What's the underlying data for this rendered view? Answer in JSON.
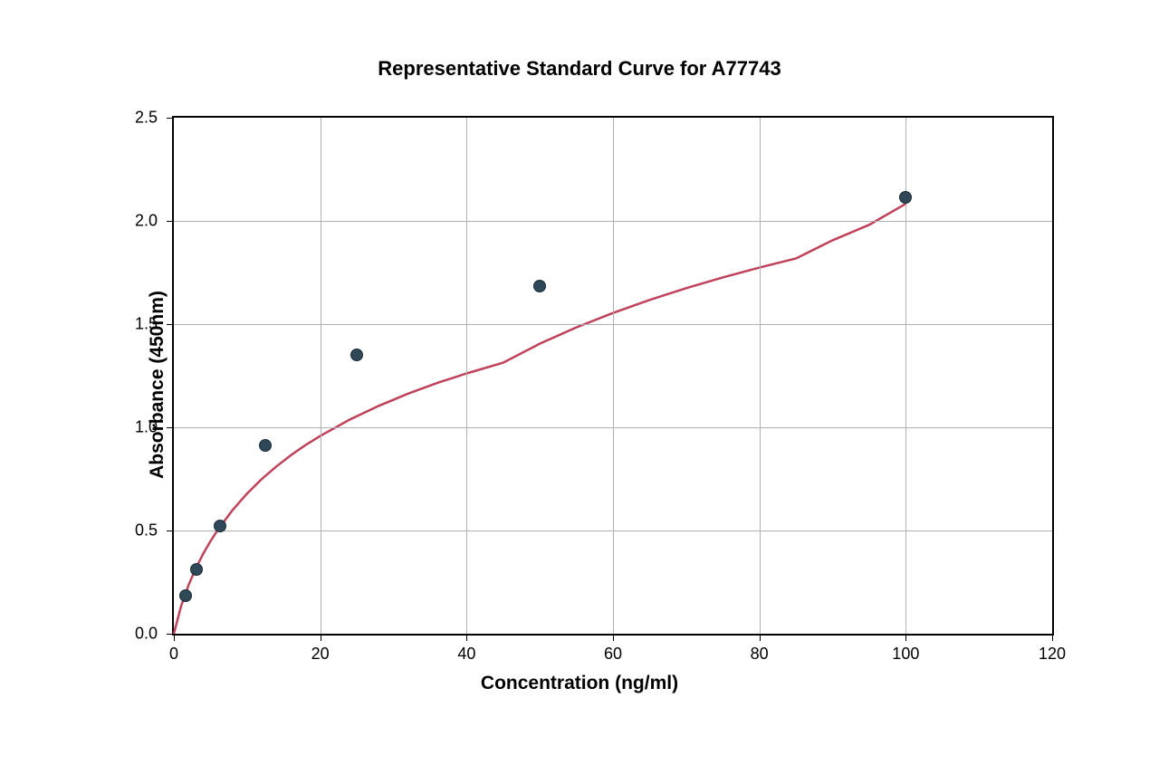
{
  "chart": {
    "type": "scatter-curve",
    "title": "Representative Standard Curve for A77743",
    "title_fontsize": 22,
    "xlabel": "Concentration (ng/ml)",
    "ylabel": "Absorbance (450nm)",
    "axis_label_fontsize": 21,
    "tick_label_fontsize": 18,
    "xlim": [
      0,
      120
    ],
    "ylim": [
      0,
      2.5
    ],
    "xtick_step": 20,
    "ytick_step": 0.5,
    "xticks": [
      0,
      20,
      40,
      60,
      80,
      100,
      120
    ],
    "yticks": [
      "0.0",
      "0.5",
      "1.0",
      "1.5",
      "2.0",
      "2.5"
    ],
    "ytick_values": [
      0,
      0.5,
      1.0,
      1.5,
      2.0,
      2.5
    ],
    "background_color": "#ffffff",
    "grid_color": "#b0b0b0",
    "grid_enabled": true,
    "border_color": "#000000",
    "points": {
      "x": [
        1.56,
        3.12,
        6.25,
        12.5,
        25,
        50,
        100
      ],
      "y": [
        0.18,
        0.31,
        0.52,
        0.91,
        1.35,
        1.68,
        2.11
      ],
      "marker_color": "#2f4858",
      "marker_outline": "#1a2a36",
      "marker_size": 12
    },
    "curve": {
      "color": "#c0425a",
      "width": 2.5,
      "x": [
        0,
        1,
        2,
        3,
        4,
        5,
        6,
        8,
        10,
        12,
        14,
        16,
        18,
        20,
        24,
        28,
        32,
        36,
        40,
        45,
        50,
        55,
        60,
        65,
        70,
        75,
        80,
        85,
        90,
        95,
        100
      ],
      "y": [
        0,
        0.135,
        0.235,
        0.317,
        0.387,
        0.448,
        0.503,
        0.598,
        0.679,
        0.749,
        0.81,
        0.865,
        0.914,
        0.958,
        1.037,
        1.104,
        1.163,
        1.215,
        1.261,
        1.313,
        1.405,
        1.484,
        1.554,
        1.617,
        1.674,
        1.726,
        1.774,
        1.818,
        1.906,
        1.981,
        2.083
      ]
    }
  }
}
